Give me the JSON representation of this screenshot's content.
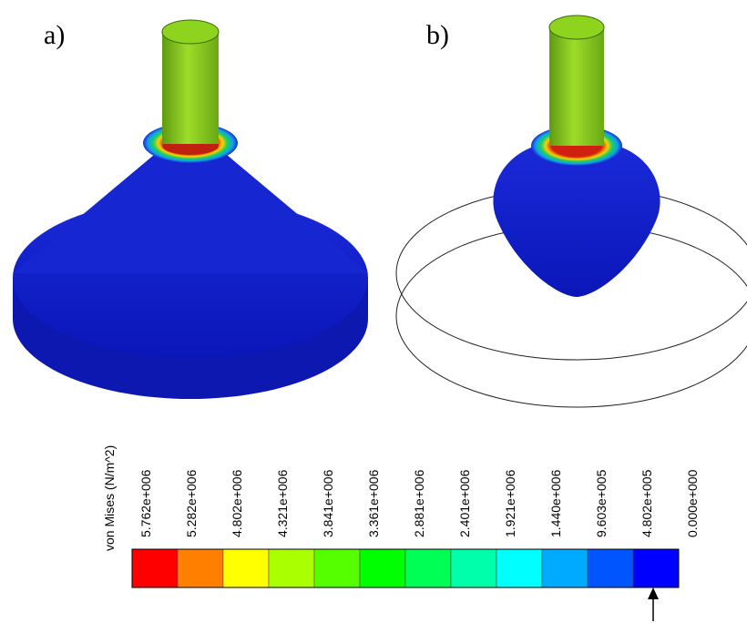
{
  "panels": [
    {
      "label": "a)"
    },
    {
      "label": "b)"
    }
  ],
  "colorbar": {
    "title": "von Mises (N/m^2)",
    "labels": [
      "5.762e+006",
      "5.282e+006",
      "4.802e+006",
      "4.321e+006",
      "3.841e+006",
      "3.361e+006",
      "2.881e+006",
      "2.401e+006",
      "1.921e+006",
      "1.440e+006",
      "9.603e+005",
      "4.802e+005",
      "0.000e+000"
    ],
    "colors": [
      "#ff0000",
      "#ff7f00",
      "#ffff00",
      "#aaff00",
      "#55ff00",
      "#00ff00",
      "#00ff55",
      "#00ffaa",
      "#00ffff",
      "#00aaff",
      "#0055ff",
      "#0000ff"
    ]
  }
}
